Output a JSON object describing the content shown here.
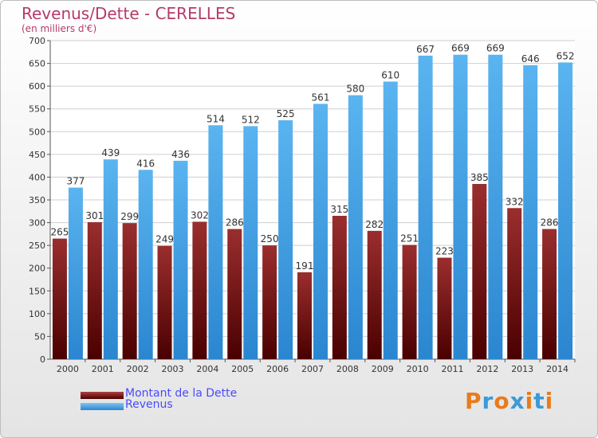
{
  "header": {
    "title": "Revenus/Dette - CERELLES",
    "subtitle": "(en milliers d'€)"
  },
  "legend": {
    "debt_label": "Montant de la Dette",
    "revenue_label": "Revenus"
  },
  "logo": {
    "text": "Proxiti",
    "letters": [
      "P",
      "r",
      "o",
      "x",
      "i",
      "t",
      "i"
    ]
  },
  "colors": {
    "debt": "#7a1818",
    "revenue": "#4aa8ec",
    "title": "#b53a6a",
    "legend_text": "#4a4aff"
  },
  "chart_data": {
    "type": "bar",
    "title": "Revenus/Dette - CERELLES",
    "subtitle": "(en milliers d'€)",
    "categories": [
      "2000",
      "2001",
      "2002",
      "2003",
      "2004",
      "2005",
      "2006",
      "2007",
      "2008",
      "2009",
      "2010",
      "2011",
      "2012",
      "2013",
      "2014"
    ],
    "series": [
      {
        "name": "Montant de la Dette",
        "values": [
          265,
          301,
          299,
          249,
          302,
          286,
          250,
          191,
          315,
          282,
          251,
          223,
          385,
          332,
          286
        ]
      },
      {
        "name": "Revenus",
        "values": [
          377,
          439,
          416,
          436,
          514,
          512,
          525,
          561,
          580,
          610,
          667,
          669,
          669,
          646,
          652
        ]
      }
    ],
    "ylim": [
      0,
      700
    ],
    "yticks": [
      0,
      50,
      100,
      150,
      200,
      250,
      300,
      350,
      400,
      450,
      500,
      550,
      600,
      650,
      700
    ],
    "grid": true,
    "legend_position": "bottom-left"
  }
}
